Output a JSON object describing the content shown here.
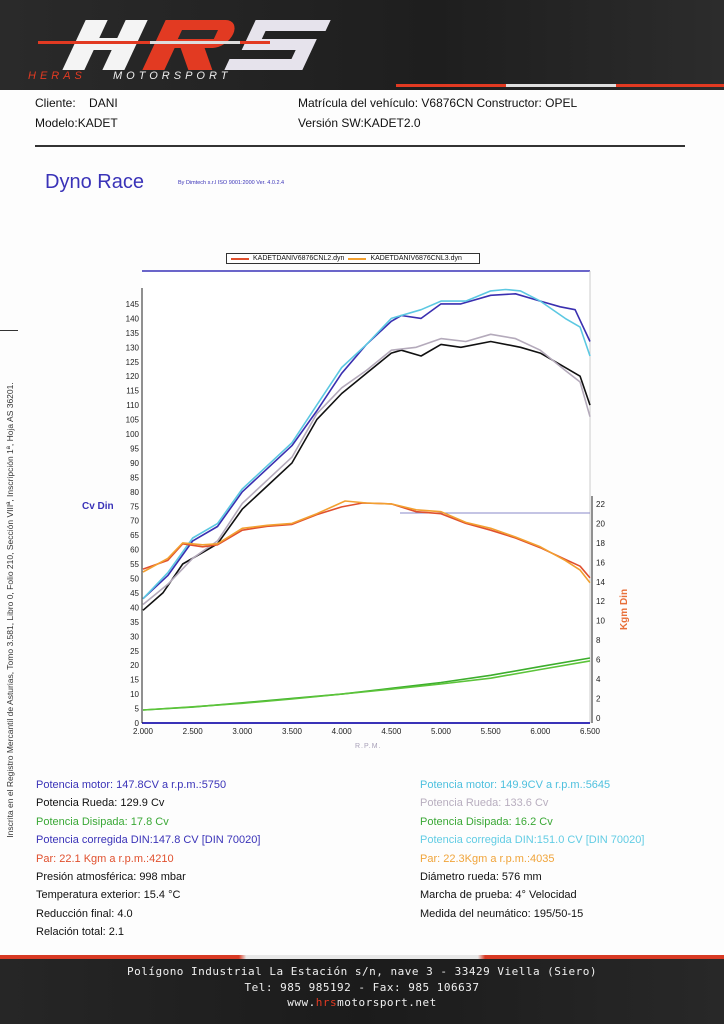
{
  "logo": {
    "letters": "HRS",
    "tagline": "HERASMOTORSPORT"
  },
  "vehicle": {
    "cliente_label": "Cliente:",
    "cliente": "DANI",
    "modelo": "Modelo:KADET",
    "matricula": "Matrícula del vehículo: V6876CN",
    "constructor": "Constructor: OPEL",
    "version": "Versión SW:KADET2.0"
  },
  "dyno": {
    "title": "Dyno Race",
    "subtitle": "By Dimtech s.r.l  ISO 9001:2000  Ver. 4.0.2.4"
  },
  "colors": {
    "motor1": "#3a2fb0",
    "motor2": "#5cc8e2",
    "wheel1": "#111111",
    "wheel2": "#b4aabb",
    "torque1": "#e0502e",
    "torque2": "#f2a030",
    "loss1": "#3cae2c",
    "loss2": "#5cc43a"
  },
  "chart_data": {
    "type": "line",
    "legend": [
      "KADETDANIV6876CNL2.dyn",
      "KADETDANIV6876CNL3.dyn"
    ],
    "legend_placement": "top",
    "xlabel": "R.P.M.",
    "ylabel": "Cv Din",
    "y2label": "Kgm Din",
    "xlim": [
      2000,
      6500
    ],
    "ylim": [
      0,
      150
    ],
    "y2lim": [
      0,
      22
    ],
    "x_tick_labels": [
      "2.000",
      "2.500",
      "3.000",
      "3.500",
      "4.000",
      "4.500",
      "5.000",
      "5.500",
      "6.000",
      "6.500"
    ],
    "y_ticks": [
      0,
      5,
      10,
      15,
      20,
      25,
      30,
      35,
      40,
      45,
      50,
      55,
      60,
      65,
      70,
      75,
      80,
      85,
      90,
      95,
      100,
      105,
      110,
      115,
      120,
      125,
      130,
      135,
      140,
      145
    ],
    "y2_ticks": [
      0,
      2,
      4,
      6,
      8,
      10,
      12,
      14,
      16,
      18,
      20,
      22
    ],
    "series": [
      {
        "name": "Potencia motor L2",
        "axis": "left",
        "color": "motor1",
        "x": [
          2000,
          2250,
          2500,
          2750,
          3000,
          3250,
          3500,
          3750,
          4000,
          4250,
          4500,
          4600,
          4800,
          5000,
          5200,
          5500,
          5750,
          6000,
          6200,
          6350,
          6500
        ],
        "y": [
          43,
          51,
          63,
          68,
          80,
          88,
          96,
          108,
          121,
          131,
          139,
          141,
          140,
          145,
          145,
          148,
          148.5,
          146,
          144,
          143,
          132
        ]
      },
      {
        "name": "Potencia motor L3",
        "axis": "left",
        "color": "motor2",
        "x": [
          2000,
          2250,
          2500,
          2750,
          3000,
          3250,
          3500,
          3750,
          4000,
          4250,
          4500,
          4800,
          5000,
          5250,
          5500,
          5650,
          5800,
          6000,
          6250,
          6400,
          6500
        ],
        "y": [
          43,
          52,
          64,
          69,
          81,
          89,
          97,
          110,
          123,
          131,
          140,
          143,
          146,
          146,
          149.5,
          150,
          149.5,
          146,
          140,
          137,
          127
        ]
      },
      {
        "name": "Potencia rueda L2",
        "axis": "left",
        "color": "wheel1",
        "x": [
          2000,
          2200,
          2400,
          2600,
          2750,
          3000,
          3250,
          3500,
          3750,
          4000,
          4250,
          4500,
          4600,
          4800,
          5000,
          5200,
          5500,
          5800,
          6000,
          6200,
          6400,
          6500
        ],
        "y": [
          39,
          45,
          55,
          59,
          62,
          74,
          82,
          90,
          105,
          114,
          121,
          128,
          129,
          127,
          131,
          130,
          132,
          130,
          128,
          124,
          120,
          110
        ]
      },
      {
        "name": "Potencia rueda L3",
        "axis": "left",
        "color": "wheel2",
        "x": [
          2000,
          2250,
          2500,
          2750,
          3000,
          3250,
          3500,
          3750,
          4000,
          4250,
          4500,
          4750,
          5000,
          5250,
          5500,
          5750,
          6000,
          6250,
          6400,
          6500
        ],
        "y": [
          41,
          48,
          57,
          63,
          76,
          84,
          92,
          107,
          116,
          122,
          129,
          130,
          133,
          132,
          134.5,
          133,
          129,
          122,
          118,
          106
        ]
      },
      {
        "name": "Par L2",
        "axis": "right",
        "color": "torque1",
        "x": [
          2000,
          2250,
          2400,
          2600,
          2750,
          3000,
          3250,
          3500,
          3750,
          4000,
          4210,
          4500,
          4750,
          5000,
          5250,
          5500,
          5750,
          6000,
          6250,
          6400,
          6500
        ],
        "y": [
          15.3,
          16.2,
          17.9,
          17.6,
          17.8,
          19.3,
          19.7,
          19.9,
          20.9,
          21.7,
          22.1,
          22.0,
          21.2,
          21.0,
          20.0,
          19.3,
          18.5,
          17.5,
          16.3,
          15.6,
          14.4
        ]
      },
      {
        "name": "Par L3",
        "axis": "right",
        "color": "torque2",
        "x": [
          2000,
          2250,
          2400,
          2600,
          2750,
          3000,
          3250,
          3500,
          3750,
          4035,
          4250,
          4500,
          4750,
          5000,
          5250,
          5500,
          5750,
          6000,
          6250,
          6400,
          6500
        ],
        "y": [
          15.0,
          16.4,
          18.0,
          17.8,
          17.9,
          19.5,
          19.8,
          20.0,
          21.0,
          22.3,
          22.1,
          22.0,
          21.4,
          21.2,
          20.1,
          19.5,
          18.6,
          17.6,
          16.2,
          15.2,
          13.9
        ]
      },
      {
        "name": "Potencia disipada L2",
        "axis": "left",
        "color": "loss1",
        "x": [
          2000,
          2500,
          3000,
          3500,
          4000,
          4500,
          5000,
          5500,
          6000,
          6500
        ],
        "y": [
          4.5,
          5.5,
          7,
          8.5,
          10,
          12,
          14,
          16.5,
          19.5,
          22.5
        ]
      },
      {
        "name": "Potencia disipada L3",
        "axis": "left",
        "color": "loss2",
        "x": [
          2000,
          2500,
          3000,
          3500,
          4000,
          4500,
          5000,
          5500,
          6000,
          6500
        ],
        "y": [
          4.5,
          5.6,
          6.8,
          8.3,
          10,
          11.7,
          13.5,
          15.5,
          18.5,
          21.5
        ]
      }
    ]
  },
  "results_left": [
    {
      "text": "Potencia motor: 147.8CV a r.p.m.:5750",
      "color": "#3a33b8"
    },
    {
      "text": "Potencia Rueda: 129.9 Cv",
      "color": "#111111"
    },
    {
      "text": "Potencia Disipada: 17.8 Cv",
      "color": "#3aa836"
    },
    {
      "text": " Potencia corregida DIN:147.8 CV  [DIN 70020]",
      "color": "#3a33b8"
    },
    {
      "text": "Par: 22.1 Kgm a r.p.m.:4210",
      "color": "#e0502e"
    },
    {
      "text": "Presión atmosférica: 998 mbar",
      "color": "#111111"
    },
    {
      "text": "Temperatura exterior: 15.4 °C",
      "color": "#111111"
    },
    {
      "text": "Reducción final: 4.0",
      "color": "#111111"
    },
    {
      "text": "Relación total: 2.1",
      "color": "#111111"
    }
  ],
  "results_right": [
    {
      "text": "Potencia motor: 149.9CV a r.p.m.:5645",
      "color": "#4ec0de"
    },
    {
      "text": "Potencia Rueda: 133.6 Cv",
      "color": "#b8aebf"
    },
    {
      "text": "Potencia Disipada: 16.2 Cv",
      "color": "#3aa836"
    },
    {
      "text": " Potencia corregida DIN:151.0 CV  [DIN 70020]",
      "color": "#62cce4"
    },
    {
      "text": "Par: 22.3Kgm a r.p.m.:4035",
      "color": "#f0a43a"
    },
    {
      "text": "Diámetro rueda: 576 mm",
      "color": "#111111"
    },
    {
      "text": "Marcha de prueba: 4° Velocidad",
      "color": "#111111"
    },
    {
      "text": "Medida del neumático: 195/50-15",
      "color": "#111111"
    }
  ],
  "side_text": "Inscrita en el Registro Mercantil de Asturias, Tomo 3.581, Libro 0, Folio 210, Sección VIIIª, Inscripción 1ª, Hoja AS 36201.",
  "footer": {
    "address": "Polígono Industrial La Estación s/n, nave 3 -  33429 Viella (Siero)",
    "phone": "Tel: 985 985192 - Fax: 985 106637",
    "web_prefix": "www.",
    "web_brand": "hrs",
    "web_suffix": "motorsport.net"
  }
}
